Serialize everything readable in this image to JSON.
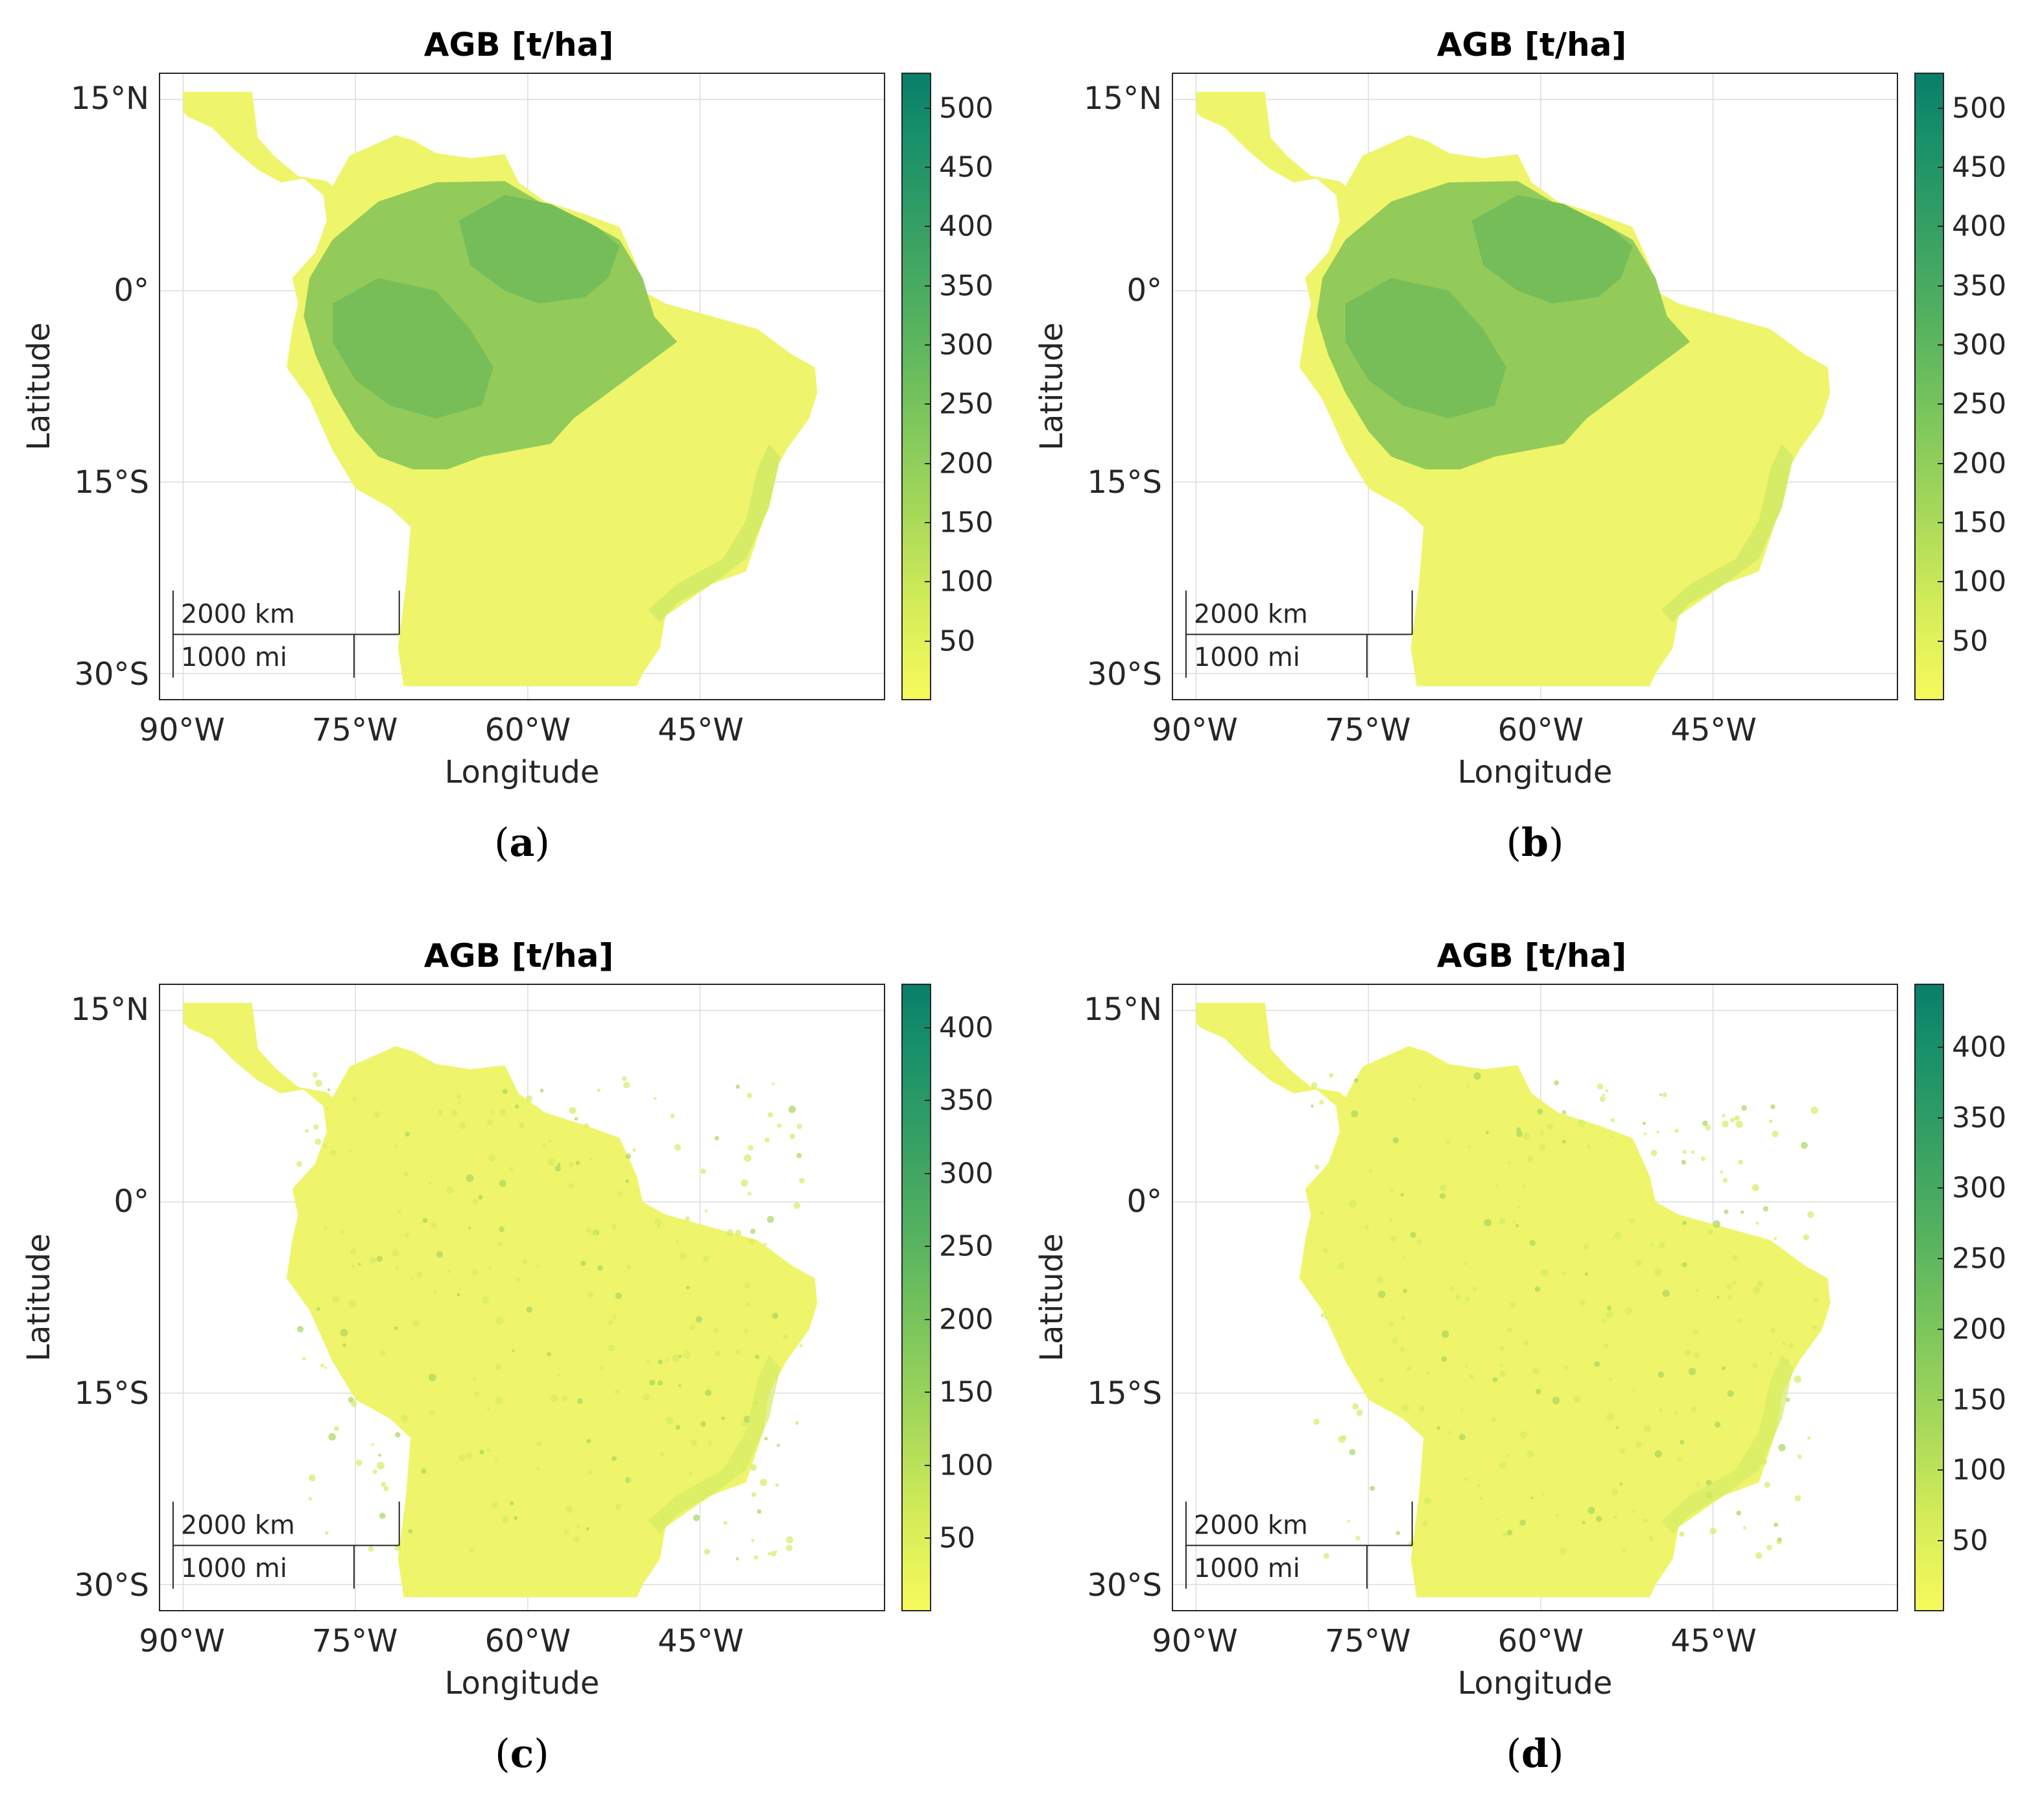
{
  "figure": {
    "panels": [
      {
        "letter": "a",
        "title": "AGB [t/ha]",
        "xlabel": "Longitude",
        "ylabel": "Latitude",
        "lon_ticks": [
          "90°W",
          "75°W",
          "60°W",
          "45°W"
        ],
        "lat_ticks": [
          "15°N",
          "0°",
          "15°S",
          "30°S"
        ],
        "colorbar_ticks": [
          "50",
          "100",
          "150",
          "200",
          "250",
          "300",
          "350",
          "400",
          "450",
          "500"
        ],
        "colorbar_range": [
          0,
          530
        ],
        "scale_km": "2000 km",
        "scale_mi": "1000 mi",
        "pattern": "high"
      },
      {
        "letter": "b",
        "title": "AGB [t/ha]",
        "xlabel": "Longitude",
        "ylabel": "Latitude",
        "lon_ticks": [
          "90°W",
          "75°W",
          "60°W",
          "45°W"
        ],
        "lat_ticks": [
          "15°N",
          "0°",
          "15°S",
          "30°S"
        ],
        "colorbar_ticks": [
          "50",
          "100",
          "150",
          "200",
          "250",
          "300",
          "350",
          "400",
          "450",
          "500"
        ],
        "colorbar_range": [
          0,
          530
        ],
        "scale_km": "2000 km",
        "scale_mi": "1000 mi",
        "pattern": "high"
      },
      {
        "letter": "c",
        "title": "AGB [t/ha]",
        "xlabel": "Longitude",
        "ylabel": "Latitude",
        "lon_ticks": [
          "90°W",
          "75°W",
          "60°W",
          "45°W"
        ],
        "lat_ticks": [
          "15°N",
          "0°",
          "15°S",
          "30°S"
        ],
        "colorbar_ticks": [
          "50",
          "100",
          "150",
          "200",
          "250",
          "300",
          "350",
          "400"
        ],
        "colorbar_range": [
          0,
          430
        ],
        "scale_km": "2000 km",
        "scale_mi": "1000 mi",
        "pattern": "low"
      },
      {
        "letter": "d",
        "title": "AGB [t/ha]",
        "xlabel": "Longitude",
        "ylabel": "Latitude",
        "lon_ticks": [
          "90°W",
          "75°W",
          "60°W",
          "45°W"
        ],
        "lat_ticks": [
          "15°N",
          "0°",
          "15°S",
          "30°S"
        ],
        "colorbar_ticks": [
          "50",
          "100",
          "150",
          "200",
          "250",
          "300",
          "350",
          "400"
        ],
        "colorbar_range": [
          0,
          445
        ],
        "scale_km": "2000 km",
        "scale_mi": "1000 mi",
        "pattern": "low"
      }
    ],
    "colormap": {
      "low": "#f7fa5c",
      "mid": "#7cc65c",
      "high": "#0a7e6a"
    },
    "land_colors": {
      "pale": "#eef56a",
      "light": "#d6eb66",
      "medium": "#a9d65c",
      "dense": "#8cc85a",
      "densest": "#74bd58"
    }
  }
}
